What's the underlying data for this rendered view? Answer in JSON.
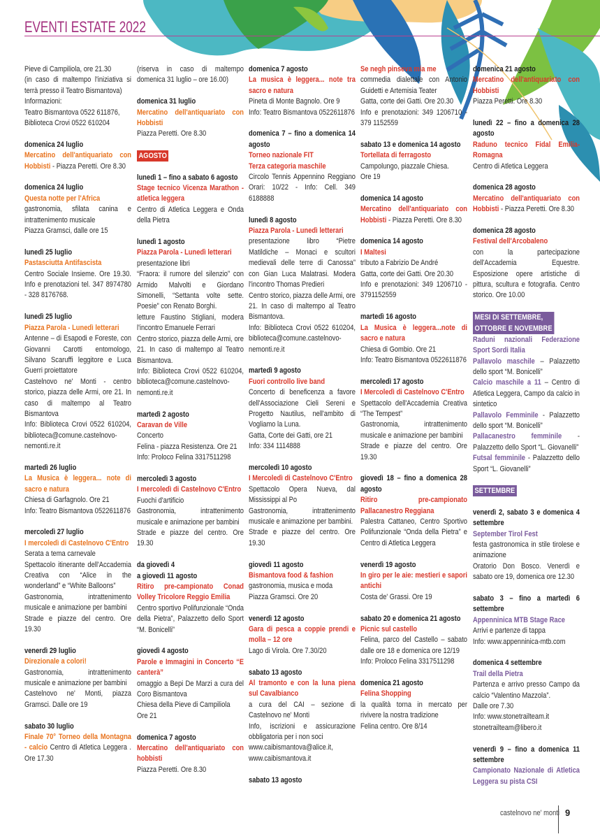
{
  "header": {
    "title": "EVENTI ESTATE 2022"
  },
  "footer": {
    "town": "castelnovo ne' monti",
    "page": "9"
  },
  "colors": {
    "july": "#e8731e",
    "august": "#d8382b",
    "september": "#7a5b9c",
    "title": "#a3307f"
  },
  "columns": [
    {
      "blocks": [
        {
          "month": "july",
          "lines": [
            "Pieve di Campiliola, ore 21.30",
            "(in caso di maltempo l'iniziativa si terrà presso il Teatro Bismantova)",
            "Informazioni:",
            "Teatro Bismantova 0522 611876,",
            "Biblioteca Crovi 0522 610204"
          ]
        },
        {
          "month": "july",
          "date": "domenica 24 luglio",
          "title": "Mercatino dell'antiquariato con Hobbisti",
          "inline": " - Piazza Peretti. Ore 8.30"
        },
        {
          "month": "july",
          "date": "domenica 24 luglio",
          "title": "Questa notte per l'Africa",
          "lines": [
            "gastronomia, sfilata canina e intrattenimento musicale",
            "Piazza Gramsci, dalle ore 15"
          ]
        },
        {
          "month": "july",
          "date": "lunedì 25 luglio",
          "title": "Pastasciutta Antifascista",
          "lines": [
            "Centro Sociale Insieme. Ore 19.30. Info e prenotazioni tel. 347 8974780 - 328 8176768."
          ]
        },
        {
          "month": "july",
          "date": "lunedì 25 luglio",
          "title": "Piazza Parola - Lunedì letterari",
          "lines": [
            "Antenne – di Esapodi e Foreste, con Giovanni Carotti entomologo, Silvano Scaruffi leggitore e Luca Guerri proiettatore",
            "Castelnovo ne' Monti - centro storico, piazza delle Armi, ore 21. In caso di maltempo al Teatro Bismantova",
            "Info: Biblioteca Crovi 0522 610204, biblioteca@comune.castelnovo-nemonti.re.it"
          ]
        },
        {
          "month": "july",
          "date": "martedì 26 luglio",
          "title": "La Musica è leggera... note di sacro e natura",
          "lines": [
            "Chiesa di Garfagnolo. Ore 21",
            "Info: Teatro Bismantova 0522611876"
          ]
        },
        {
          "month": "july",
          "date": "mercoledì 27 luglio",
          "title": "I mercoledì di Castelnovo C'Entro",
          "lines": [
            "Serata a tema carnevale",
            "Spettacolo itinerante dell'Accademia Creativa con “Alice in the wonderland” e “White Balloons”",
            "Gastronomia, intrattenimento musicale e animazione per bambini",
            "Strade e piazze del centro. Ore 19.30"
          ]
        },
        {
          "month": "july",
          "date": "venerdì 29 luglio",
          "title": "Direzionale a colori!",
          "lines": [
            "Gastronomia, intrattenimento musicale e animazione per bambini",
            "Castelnovo ne' Monti, piazza Gramsci. Dalle ore 19"
          ]
        },
        {
          "month": "july",
          "date": "sabato 30 luglio",
          "title": "Finale 70° Torneo della Montagna - calcio",
          "inline": " Centro di Atletica Leggera . Ore 17.30"
        }
      ]
    },
    {
      "blocks": [
        {
          "month": "july",
          "lines": [
            "(riserva in caso di maltempo domenica 31 luglio – ore 16.00)"
          ]
        },
        {
          "month": "july",
          "date": "domenica 31 luglio",
          "title": "Mercatino dell'antiquariato con Hobbisti",
          "lines": [
            "Piazza Peretti. Ore 8.30"
          ]
        },
        {
          "month": "august",
          "badge": "AGOSTO"
        },
        {
          "month": "august",
          "date": "lunedì 1 – fino a sabato 6 agosto",
          "title": "Stage tecnico Vicenza Marathon - atletica leggera",
          "lines": [
            "Centro di Atletica Leggera e Onda della Pietra"
          ]
        },
        {
          "month": "august",
          "date": "lunedì 1 agosto",
          "title": "Piazza Parola - Lunedì letterari",
          "lines": [
            "presentazione libri",
            "“Fraora: il rumore del silenzio” con Armido Malvolti e Giordano Simonelli, “Settanta volte sette. Poesie” con Renato Borghi.",
            "letture Faustino Stigliani, modera l'incontro Emanuele Ferrari",
            "Centro storico, piazza delle Armi, ore 21. In caso di maltempo al Teatro Bismantova.",
            "Info: Biblioteca Crovi 0522 610204, biblioteca@comune.castelnovo-nemonti.re.it"
          ]
        },
        {
          "month": "august",
          "date": "martedì 2 agosto",
          "title": "Caravan de Ville",
          "lines": [
            "Concerto",
            "Felina - piazza Resistenza. Ore 21",
            "Info: Proloco Felina 3317511298"
          ]
        },
        {
          "month": "august",
          "date": "mercoledì 3 agosto",
          "title": "I mercoledì di Castelnovo C'Entro",
          "lines": [
            "Fuochi d'artificio",
            "Gastronomia, intrattenimento musicale e animazione per bambini",
            "Strade e piazze del centro. Ore 19.30"
          ]
        },
        {
          "month": "august",
          "date": "da giovedì 4\na giovedì 11 agosto",
          "title": "Ritiro pre-campionato Conad Volley Tricolore Reggio Emilia",
          "lines": [
            "Centro sportivo Polifunzionale “Onda della Pietra”, Palazzetto dello Sport “M. Bonicelli”"
          ]
        },
        {
          "month": "august",
          "date": "giovedì 4 agosto",
          "title": "Parole e Immagini in Concerto “E canterà”",
          "lines": [
            "omaggio a Bepi De Marzi a cura del Coro Bismantova",
            "Chiesa della Pieve di Campiliola",
            "Ore 21"
          ]
        },
        {
          "month": "august",
          "date": "domenica 7 agosto",
          "title": "Mercatino dell'antiquariato con hobbisti",
          "lines": [
            "Piazza Peretti. Ore 8.30"
          ]
        }
      ]
    },
    {
      "blocks": [
        {
          "month": "august",
          "date": "domenica 7 agosto",
          "title": "La musica è leggera... note tra sacro e natura",
          "lines": [
            "Pineta di Monte Bagnolo. Ore 9",
            "Info: Teatro Bismantova 0522611876"
          ]
        },
        {
          "month": "august",
          "date": "domenica 7 – fino a domenica 14 agosto",
          "title": "Torneo nazionale FIT\nTerza categoria maschile",
          "lines": [
            "Circolo Tennis Appennino Reggiano Orari: 10/22 - Info: Cell. 349 6188888"
          ]
        },
        {
          "month": "august",
          "date": "lunedì 8 agosto",
          "title": "Piazza Parola - Lunedì letterari",
          "lines": [
            "presentazione libro “Pietre Matildiche – Monaci e scultori medievali delle terre di Canossa” con Gian Luca Malatrasi. Modera l'incontro Thomas Predieri",
            "Centro storico, piazza delle Armi, ore 21. In caso di maltempo al Teatro Bismantova.",
            "Info: Biblioteca Crovi 0522 610204, biblioteca@comune.castelnovo-nemonti.re.it"
          ]
        },
        {
          "month": "august",
          "date": "martedì 9 agosto",
          "title": "Fuori controllo live band",
          "lines": [
            "Concerto di beneficenza a favore dell'Associazione Cieli Sereni e Progetto Nautilus, nell'ambito di Vogliamo la Luna.",
            "Gatta, Corte dei Gatti, ore 21",
            "Info: 334 1114888"
          ]
        },
        {
          "month": "august",
          "date": "mercoledì 10 agosto",
          "title": "I Mercoledì di Castelnovo C'Entro",
          "lines": [
            "Spettacolo Opera Nueva, dal Mississippi al Po",
            "Gastronomia, intrattenimento musicale e animazione per bambini.",
            "Strade e piazze del centro. Ore 19.30"
          ]
        },
        {
          "month": "august",
          "date": "giovedì 11 agosto",
          "title": "Bismantova food & fashion",
          "lines": [
            "gastronomia, musica e moda",
            "Piazza Gramsci. Ore 20"
          ]
        },
        {
          "month": "august",
          "date": "venerdì 12 agosto",
          "title": "Gara di pesca a coppie prendi e molla – 12 ore",
          "lines": [
            "Lago di Virola. Ore 7.30/20"
          ]
        },
        {
          "month": "august",
          "date": "sabato 13 agosto",
          "title": "Al tramonto e con la luna piena sul Cavalbianco",
          "lines": [
            "a cura del CAI – sezione di Castelnovo ne' Monti",
            "Info, iscrizioni e assicurazione obbligatoria per i non soci",
            "www.caibismantova@alice.it, www.caibismantova.it"
          ]
        },
        {
          "month": "august",
          "date": "sabato 13 agosto"
        }
      ]
    },
    {
      "blocks": [
        {
          "month": "august",
          "title": "Se negh pinseva mia me",
          "lines": [
            "commedia dialettale con Antonio Guidetti e Artemisia Teater",
            "Gatta, corte dei Gatti. Ore 20.30",
            "Info e prenotazioni: 349 1206710 - 379 1152559"
          ]
        },
        {
          "month": "august",
          "date": "sabato 13 e domenica 14 agosto",
          "title": "Tortellata di ferragosto",
          "lines": [
            "Campolungo, piazzale Chiesa.",
            "Ore 19"
          ]
        },
        {
          "month": "august",
          "date": "domenica 14 agosto",
          "title": "Mercatino dell'antiquariato con Hobbisti",
          "inline": " - Piazza Peretti. Ore 8.30"
        },
        {
          "month": "august",
          "date": "domenica 14 agosto",
          "title": "I Maltesi",
          "lines": [
            "tributo a Fabrizio De André",
            "Gatta, corte dei Gatti. Ore 20.30",
            "Info e prenotazioni: 349 1206710 - 3791152559"
          ]
        },
        {
          "month": "august",
          "date": "martedì 16 agosto",
          "title": "La Musica è leggera...note di sacro e natura",
          "lines": [
            "Chiesa di Gombio. Ore 21",
            "Info: Teatro Bismantova 0522611876"
          ]
        },
        {
          "month": "august",
          "date": "mercoledì 17 agosto",
          "title": "I Mercoledì di Castelnovo C'Entro",
          "lines": [
            "Spettacolo dell'Accademia Creativa “The Tempest”",
            "Gastronomia, intrattenimento musicale e animazione per bambini",
            "Strade e piazze del centro. Ore 19.30"
          ]
        },
        {
          "month": "august",
          "date": "giovedì 18 – fino a domenica 28 agosto",
          "title": "Ritiro pre-campionato Pallacanestro Reggiana",
          "lines": [
            "Palestra Cattaneo, Centro Sportivo Polifunzionale “Onda della Pietra” e Centro di Atletica Leggera"
          ]
        },
        {
          "month": "august",
          "date": "venerdì 19 agosto",
          "title": "In giro per le aie: mestieri e sapori antichi",
          "lines": [
            "Costa de' Grassi. Ore 19"
          ]
        },
        {
          "month": "august",
          "date": "sabato 20 e domenica 21 agosto",
          "title": "Picnic sul castello",
          "lines": [
            "Felina, parco del Castello – sabato dalle ore 18 e domenica ore 12/19",
            "Info: Proloco Felina 3317511298"
          ]
        },
        {
          "month": "august",
          "date": "domenica 21 agosto",
          "title": "Felina Shopping",
          "lines": [
            "la qualità torna in mercato per rivivere la nostra tradizione",
            "Felina centro. Ore 8/14"
          ]
        }
      ]
    },
    {
      "blocks": [
        {
          "month": "august",
          "date": "domenica 21 agosto",
          "title": "Mercatino dell'antiquariato con Hobbisti",
          "lines": [
            "Piazza Peretti. Ore 8.30"
          ]
        },
        {
          "month": "august",
          "date": "lunedì 22 – fino a domenica 28 agosto",
          "title": "Raduno tecnico Fidal Emilia-Romagna",
          "lines": [
            "Centro di Atletica Leggera"
          ]
        },
        {
          "month": "august",
          "date": "domenica 28 agosto",
          "title": "Mercatino dell'antiquariato con Hobbisti",
          "inline": " - Piazza Peretti. Ore 8.30"
        },
        {
          "month": "august",
          "date": "domenica 28 agosto",
          "title": "Festival dell'Arcobaleno",
          "lines": [
            "con la partecipazione dell'Accademia Equestre. Esposizione opere artistiche di pittura, scultura e fotografia. Centro storico. Ore 10.00"
          ]
        },
        {
          "month": "september",
          "badge": "MESI DI SETTEMBRE,\nOTTOBRE E NOVEMBRE",
          "tight": true
        },
        {
          "month": "september",
          "title": "Raduni nazionali Federazione Sport Sordi Italia",
          "pairs": [
            {
              "title": "Pallavolo maschile",
              "text": " – Palazzetto dello sport “M. Bonicelli”"
            },
            {
              "title": "Calcio maschile a 11",
              "text": " – Centro di Atletica Leggera, Campo da calcio in sintetico"
            },
            {
              "title": "Pallavolo Femminile",
              "text": " - Palazzetto dello sport “M. Bonicelli”"
            },
            {
              "title": "Pallacanestro femminile",
              "text": " - Palazzetto dello Sport “L. Giovanelli”"
            },
            {
              "title": "Futsal femminile",
              "text": " - Palazzetto dello Sport “L. Giovanelli”"
            }
          ]
        },
        {
          "month": "september",
          "badge": "SETTEMBRE"
        },
        {
          "month": "september",
          "date": "venerdì 2, sabato 3 e domenica 4 settembre",
          "title": "September Tirol Fest",
          "lines": [
            "festa gastronomica in stile tirolese e animazione",
            "Oratorio Don Bosco. Venerdì e sabato ore 19, domenica ore 12.30"
          ]
        },
        {
          "month": "september",
          "date": "sabato 3 – fino a martedì 6 settembre",
          "title": "Appenninica MTB Stage Race",
          "lines": [
            "Arrivi e partenze di tappa",
            "Info: www.appenninica-mtb.com"
          ]
        },
        {
          "month": "september",
          "date": "domenica 4 settembre",
          "title": "Trail della Pietra",
          "lines": [
            "Partenza e arrivo presso Campo da calcio “Valentino Mazzola”.",
            "Dalle ore 7.30",
            "Info: www.stonetrailteam.it",
            "stonetrailteam@libero.it"
          ]
        },
        {
          "month": "september",
          "date": "venerdì 9 – fino a domenica 11 settembre",
          "title": "Campionato Nazionale di Atletica Leggera su pista CSI"
        }
      ]
    }
  ]
}
